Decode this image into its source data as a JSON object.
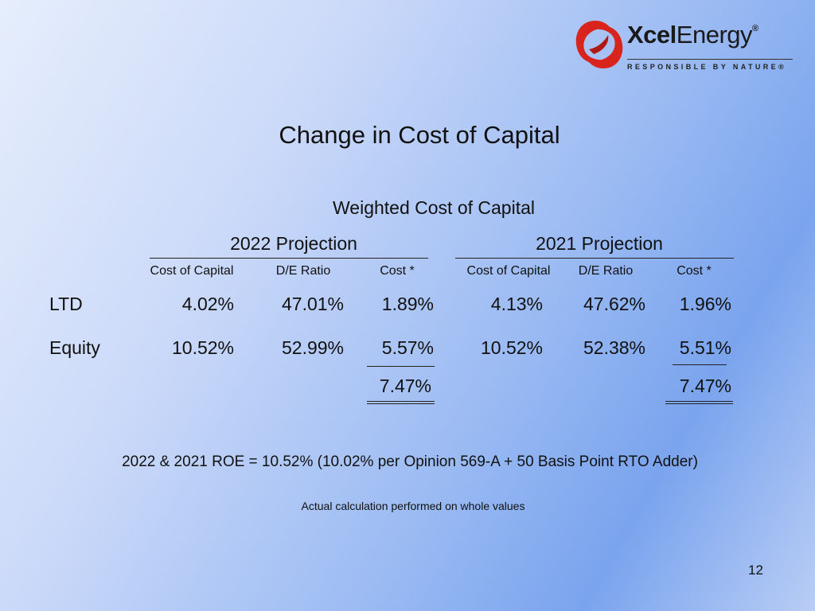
{
  "logo": {
    "brand_bold": "Xcel",
    "brand_light": "Energy",
    "registered": "®",
    "tagline": "RESPONSIBLE BY NATURE®",
    "colors": {
      "swirl": "#d9231d"
    }
  },
  "title": "Change in Cost of Capital",
  "subtitle": "Weighted Cost of Capital",
  "projections": [
    {
      "label": "2022 Projection",
      "columns": [
        "Cost of Capital",
        "D/E Ratio",
        "Cost *"
      ],
      "rows": [
        {
          "values": [
            "4.02%",
            "47.01%",
            "1.89%"
          ]
        },
        {
          "values": [
            "10.52%",
            "52.99%",
            "5.57%"
          ]
        }
      ],
      "total": "7.47%"
    },
    {
      "label": "2021 Projection",
      "columns": [
        "Cost of Capital",
        "D/E Ratio",
        "Cost *"
      ],
      "rows": [
        {
          "values": [
            "4.13%",
            "47.62%",
            "1.96%"
          ]
        },
        {
          "values": [
            "10.52%",
            "52.38%",
            "5.51%"
          ]
        }
      ],
      "total": "7.47%"
    }
  ],
  "row_labels": [
    "LTD",
    "Equity"
  ],
  "roe_note": "2022 & 2021 ROE = 10.52% (10.02% per Opinion 569-A + 50 Basis Point RTO Adder)",
  "calc_note": "Actual calculation performed on whole values",
  "page_number": "12"
}
